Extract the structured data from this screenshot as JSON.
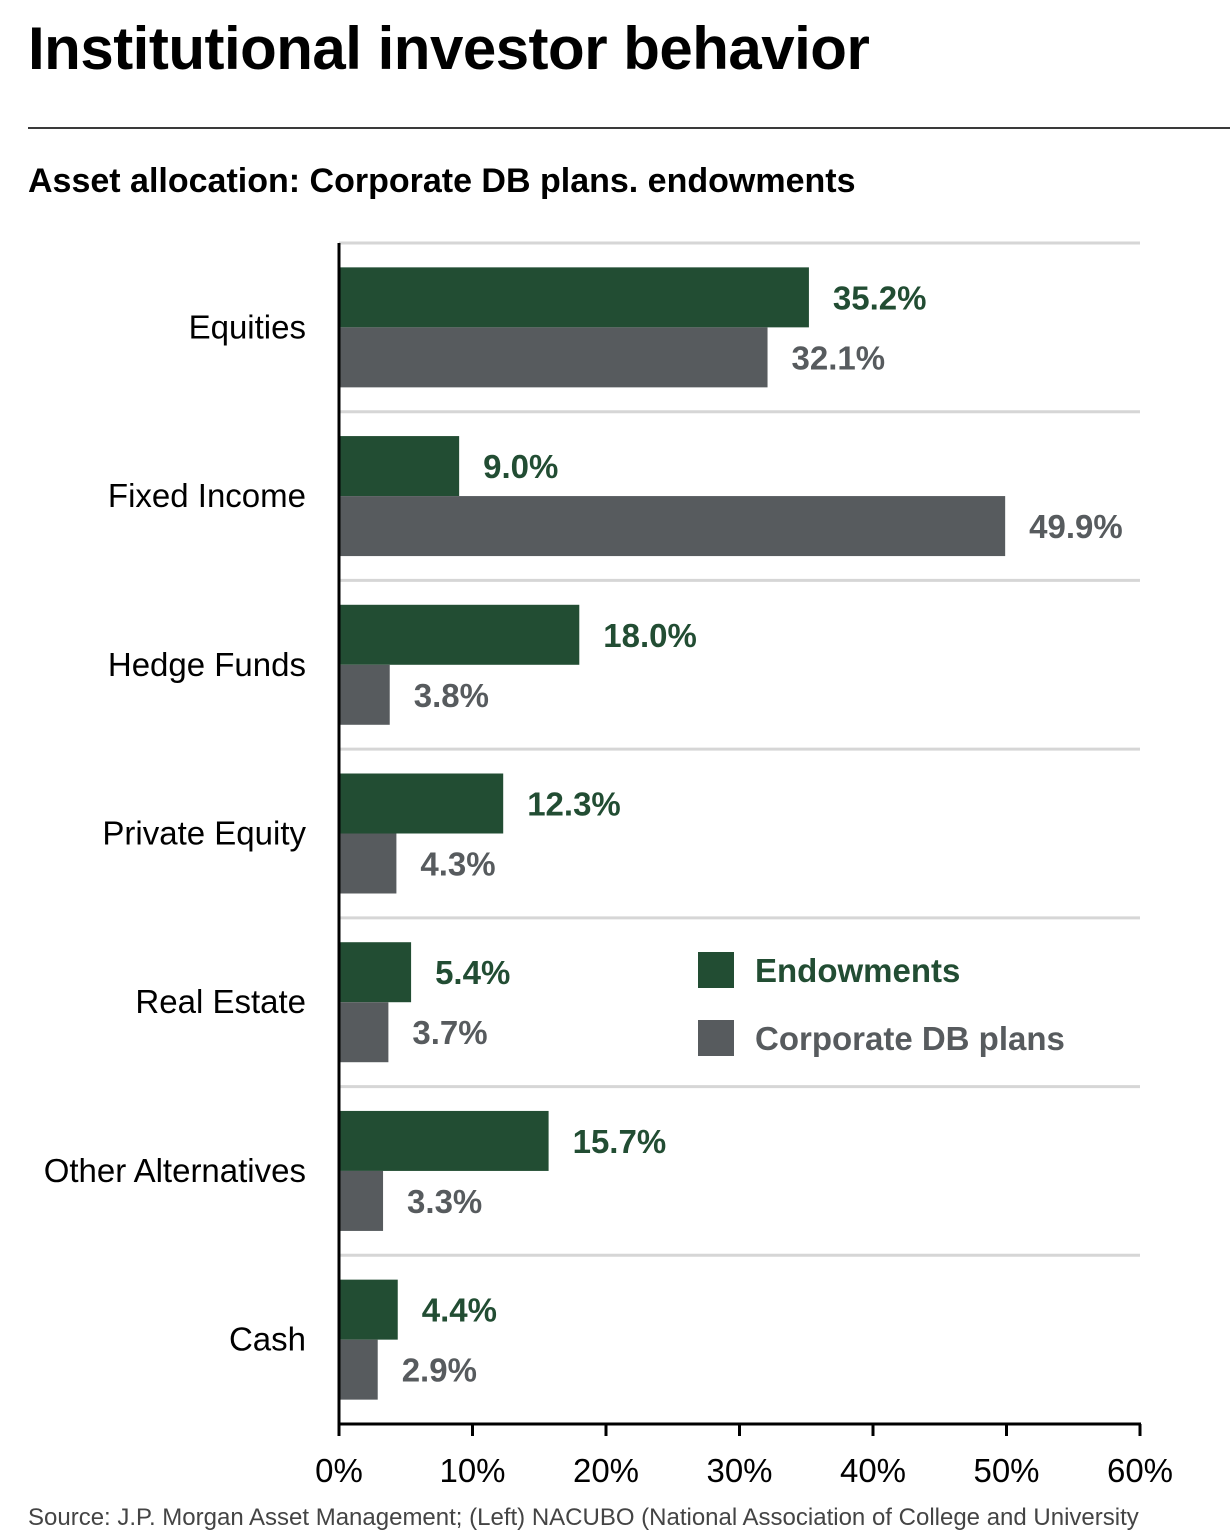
{
  "header": {
    "title": "Institutional investor behavior",
    "subtitle": "Asset allocation: Corporate DB plans. endowments"
  },
  "footer": {
    "source": "Source: J.P. Morgan Asset Management; (Left) NACUBO (National Association of College and University"
  },
  "colors": {
    "endowments": "#224d33",
    "corporate": "#575b5e",
    "grid": "#d6d6d6",
    "axis": "#000000"
  },
  "chart_data": {
    "type": "bar",
    "orientation": "horizontal",
    "title": "Asset allocation: Corporate DB plans. endowments",
    "categories": [
      "Equities",
      "Fixed Income",
      "Hedge Funds",
      "Private Equity",
      "Real Estate",
      "Other Alternatives",
      "Cash"
    ],
    "series": [
      {
        "name": "Endowments",
        "values": [
          35.2,
          9.0,
          18.0,
          12.3,
          5.4,
          15.7,
          4.4
        ],
        "labels": [
          "35.2%",
          "9.0%",
          "18.0%",
          "12.3%",
          "5.4%",
          "15.7%",
          "4.4%"
        ]
      },
      {
        "name": "Corporate DB plans",
        "values": [
          32.1,
          49.9,
          3.8,
          4.3,
          3.7,
          3.3,
          2.9
        ],
        "labels": [
          "32.1%",
          "49.9%",
          "3.8%",
          "4.3%",
          "3.7%",
          "3.3%",
          "2.9%"
        ]
      }
    ],
    "xlim": [
      0,
      60
    ],
    "xticks": [
      0,
      10,
      20,
      30,
      40,
      50,
      60
    ],
    "xtick_labels": [
      "0%",
      "10%",
      "20%",
      "30%",
      "40%",
      "50%",
      "60%"
    ],
    "xlabel": "",
    "ylabel": "",
    "legend": {
      "position": "center-right",
      "entries": [
        "Endowments",
        "Corporate DB plans"
      ]
    },
    "grid": true
  }
}
